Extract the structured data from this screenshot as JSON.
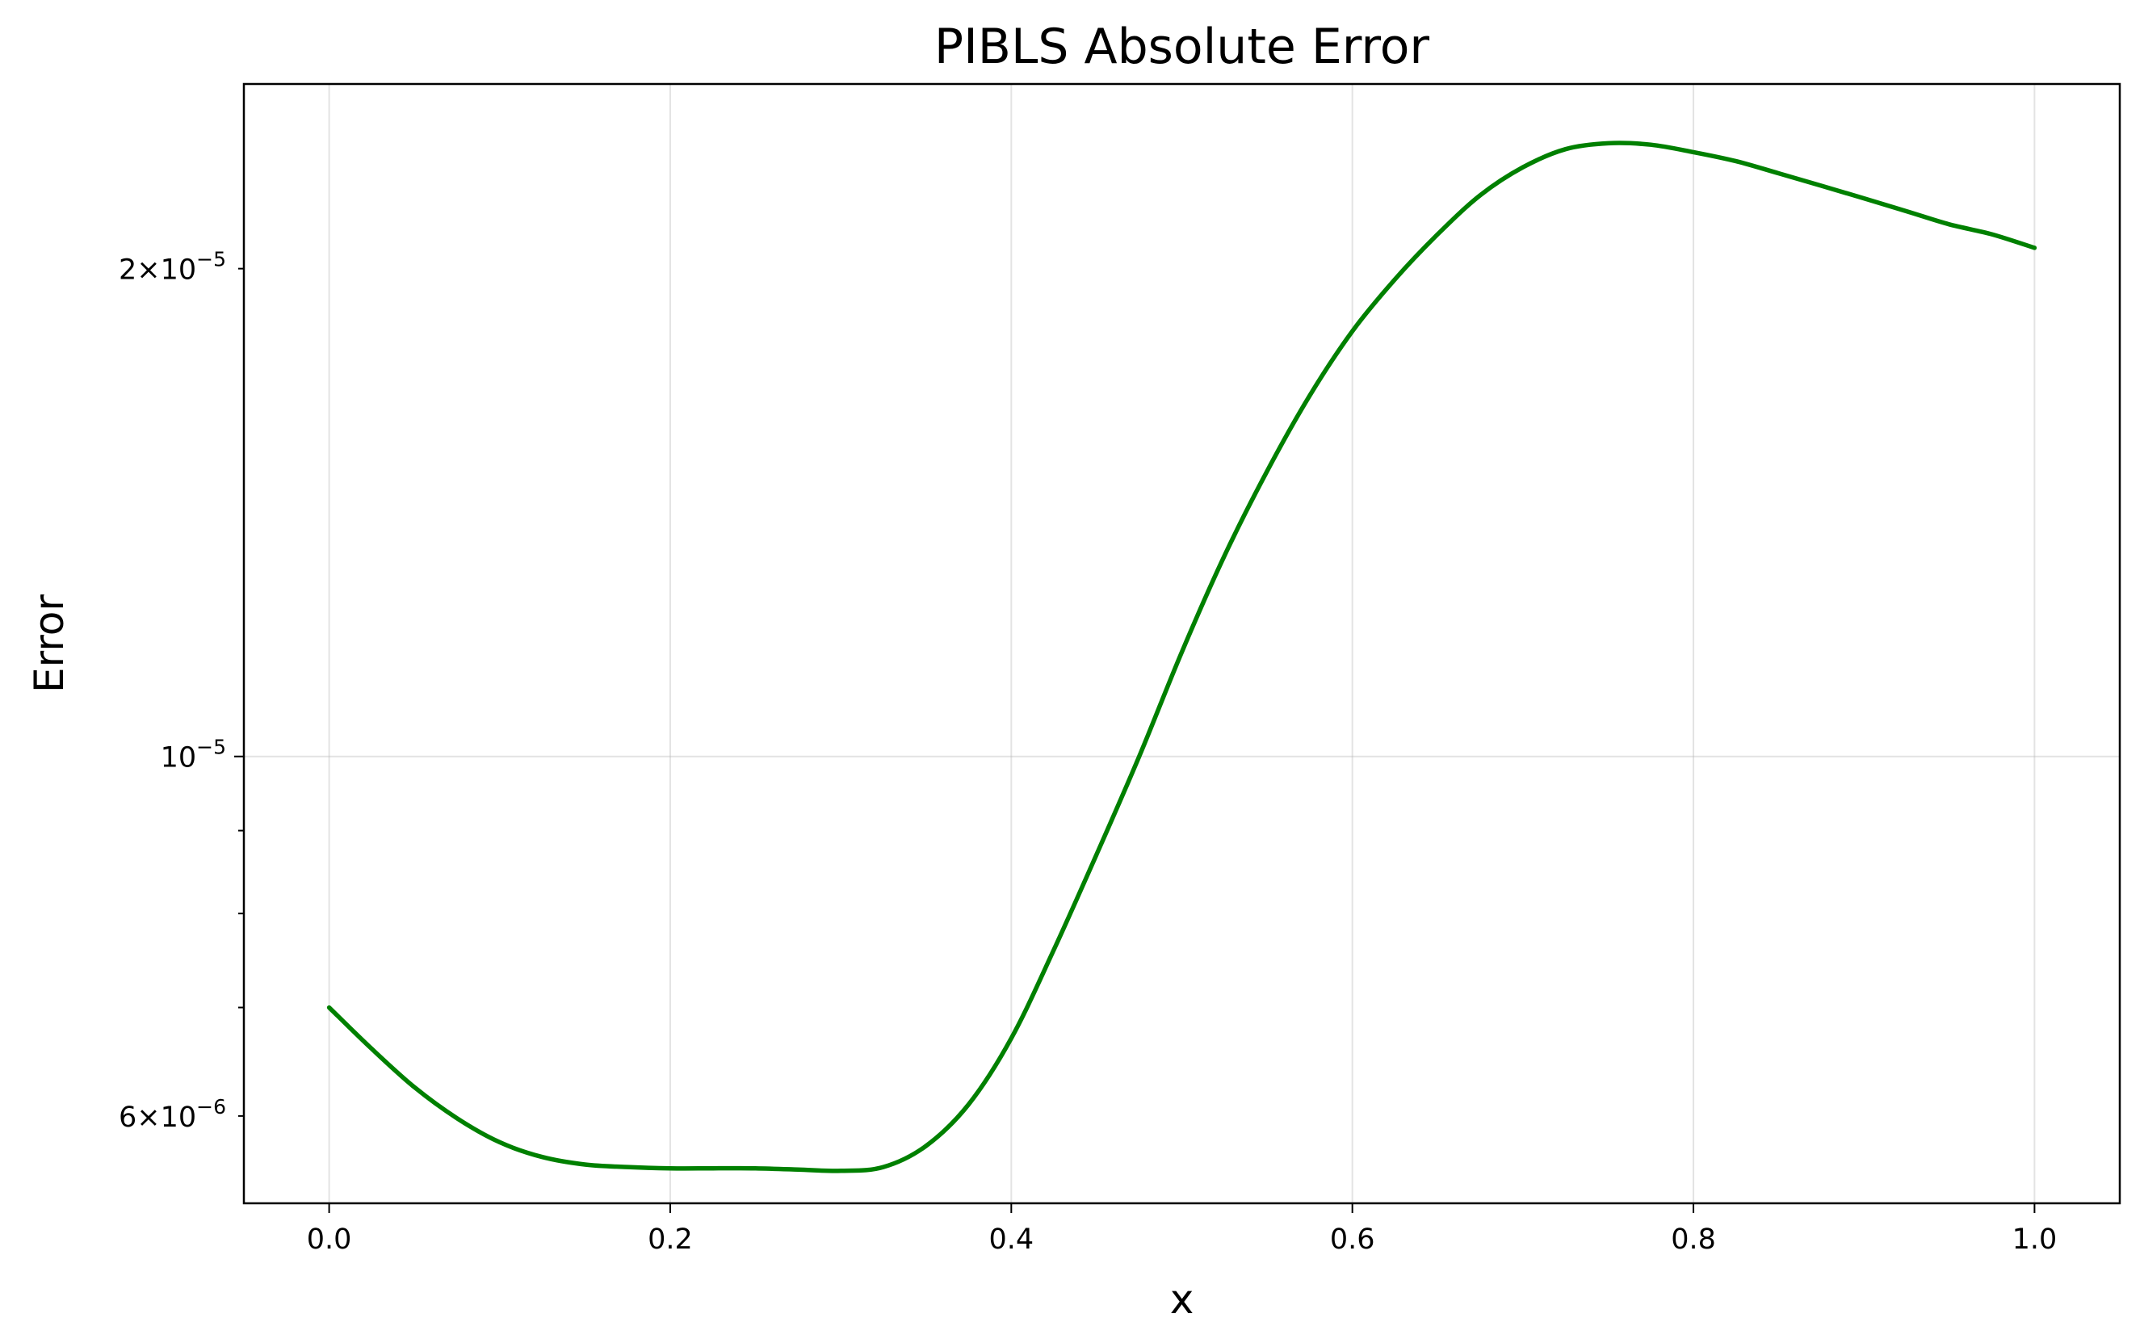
{
  "chart_data": {
    "type": "line",
    "title": "PIBLS Absolute Error",
    "xlabel": "x",
    "ylabel": "Error",
    "x_scale": "linear",
    "y_scale": "log",
    "xlim": [
      -0.05,
      1.05
    ],
    "ylim": [
      5.3e-06,
      2.6e-05
    ],
    "grid": true,
    "legend": "none",
    "x_ticks": [
      {
        "value": 0.0,
        "label": "0.0"
      },
      {
        "value": 0.2,
        "label": "0.2"
      },
      {
        "value": 0.4,
        "label": "0.4"
      },
      {
        "value": 0.6,
        "label": "0.6"
      },
      {
        "value": 0.8,
        "label": "0.8"
      },
      {
        "value": 1.0,
        "label": "1.0"
      }
    ],
    "y_major_ticks": [
      {
        "value": 1e-05,
        "mantissa": "",
        "exponent": "−5"
      }
    ],
    "y_minor_ticks": [
      {
        "value": 6e-06,
        "mantissa": "6",
        "exponent": "−6"
      },
      {
        "value": 7e-06,
        "mantissa": "",
        "exponent": ""
      },
      {
        "value": 8e-06,
        "mantissa": "",
        "exponent": ""
      },
      {
        "value": 9e-06,
        "mantissa": "",
        "exponent": ""
      },
      {
        "value": 2e-05,
        "mantissa": "2",
        "exponent": "−5"
      }
    ],
    "series": [
      {
        "color": "#008000",
        "x": [
          0.0,
          0.025,
          0.05,
          0.075,
          0.1,
          0.125,
          0.15,
          0.175,
          0.2,
          0.225,
          0.25,
          0.275,
          0.3,
          0.325,
          0.35,
          0.375,
          0.4,
          0.425,
          0.45,
          0.475,
          0.5,
          0.525,
          0.55,
          0.575,
          0.6,
          0.625,
          0.65,
          0.675,
          0.7,
          0.725,
          0.75,
          0.775,
          0.8,
          0.825,
          0.85,
          0.875,
          0.9,
          0.925,
          0.95,
          0.975,
          1.0
        ],
        "y": [
          7e-06,
          6.6e-06,
          6.25e-06,
          5.98e-06,
          5.78e-06,
          5.66e-06,
          5.6e-06,
          5.58e-06,
          5.57e-06,
          5.57e-06,
          5.57e-06,
          5.56e-06,
          5.55e-06,
          5.58e-06,
          5.75e-06,
          6.1e-06,
          6.7e-06,
          7.6e-06,
          8.7e-06,
          1e-05,
          1.16e-05,
          1.33e-05,
          1.5e-05,
          1.67e-05,
          1.83e-05,
          1.97e-05,
          2.1e-05,
          2.22e-05,
          2.31e-05,
          2.37e-05,
          2.39e-05,
          2.385e-05,
          2.36e-05,
          2.33e-05,
          2.29e-05,
          2.25e-05,
          2.21e-05,
          2.17e-05,
          2.13e-05,
          2.1e-05,
          2.06e-05
        ]
      }
    ]
  }
}
